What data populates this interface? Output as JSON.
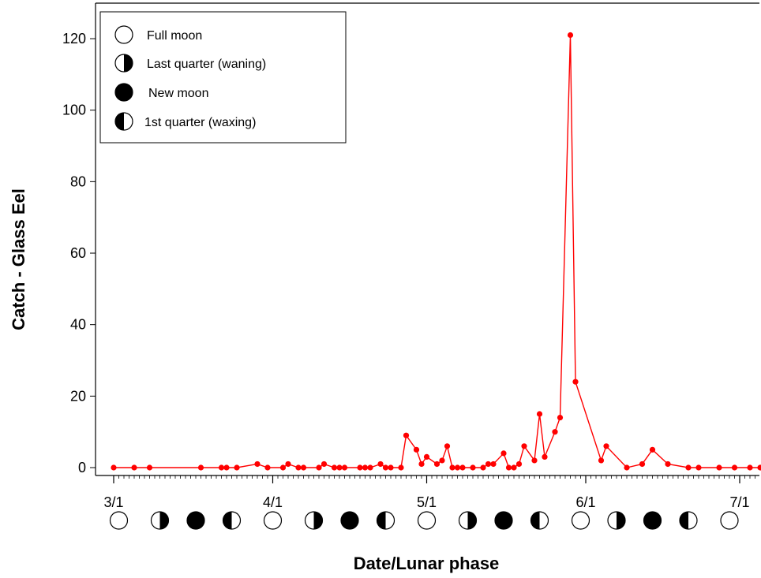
{
  "chart_data": {
    "type": "line",
    "title": "",
    "xlabel": "Date/Lunar phase",
    "ylabel": "Catch - Glass Eel",
    "ylim": [
      0,
      125
    ],
    "yticks": [
      0,
      20,
      40,
      60,
      80,
      100,
      120
    ],
    "x_tick_labels": [
      "3/1",
      "4/1",
      "5/1",
      "6/1",
      "7/1"
    ],
    "x_tick_dates": [
      "03-01",
      "04-01",
      "05-01",
      "06-01",
      "07-01"
    ],
    "xlim": [
      "03-01",
      "07-05"
    ],
    "grid": false,
    "line_color": "#ff0000",
    "series": [
      {
        "x": [
          "03-01",
          "03-05",
          "03-08",
          "03-18",
          "03-22",
          "03-23",
          "03-25",
          "03-29",
          "03-31",
          "04-03",
          "04-04",
          "04-06",
          "04-07",
          "04-10",
          "04-11",
          "04-13",
          "04-14",
          "04-15",
          "04-18",
          "04-19",
          "04-20",
          "04-22",
          "04-23",
          "04-24",
          "04-26",
          "04-27",
          "04-29",
          "04-30",
          "05-01",
          "05-03",
          "05-04",
          "05-05",
          "05-06",
          "05-07",
          "05-08",
          "05-10",
          "05-12",
          "05-13",
          "05-14",
          "05-16",
          "05-17",
          "05-18",
          "05-19",
          "05-20",
          "05-22",
          "05-23",
          "05-24",
          "05-26",
          "05-27",
          "05-29",
          "05-30",
          "06-04",
          "06-05",
          "06-09",
          "06-12",
          "06-14",
          "06-17",
          "06-21",
          "06-23",
          "06-27",
          "06-30",
          "07-03",
          "07-05"
        ],
        "y": [
          0,
          0,
          0,
          0,
          0,
          0,
          0,
          1,
          0,
          0,
          1,
          0,
          0,
          0,
          1,
          0,
          0,
          0,
          0,
          0,
          0,
          1,
          0,
          0,
          0,
          9,
          5,
          1,
          3,
          1,
          2,
          6,
          0,
          0,
          0,
          0,
          0,
          1,
          1,
          4,
          0,
          0,
          1,
          6,
          2,
          15,
          3,
          10,
          14,
          121,
          24,
          2,
          6,
          0,
          1,
          5,
          1,
          0,
          0,
          0,
          0,
          0,
          0
        ]
      }
    ],
    "lunar_phases": {
      "legend": [
        {
          "phase": "full",
          "label": "Full moon"
        },
        {
          "phase": "last-quarter",
          "label": "Last quarter (waning)"
        },
        {
          "phase": "new",
          "label": "New moon"
        },
        {
          "phase": "first-quarter",
          "label": "1st quarter (waxing)"
        }
      ],
      "legend_position": "top-left",
      "markers": [
        {
          "date": "03-02",
          "phase": "full"
        },
        {
          "date": "03-10",
          "phase": "last-quarter"
        },
        {
          "date": "03-17",
          "phase": "new"
        },
        {
          "date": "03-24",
          "phase": "first-quarter"
        },
        {
          "date": "04-01",
          "phase": "full"
        },
        {
          "date": "04-09",
          "phase": "last-quarter"
        },
        {
          "date": "04-16",
          "phase": "new"
        },
        {
          "date": "04-23",
          "phase": "first-quarter"
        },
        {
          "date": "05-01",
          "phase": "full"
        },
        {
          "date": "05-09",
          "phase": "last-quarter"
        },
        {
          "date": "05-16",
          "phase": "new"
        },
        {
          "date": "05-23",
          "phase": "first-quarter"
        },
        {
          "date": "05-31",
          "phase": "full"
        },
        {
          "date": "06-07",
          "phase": "last-quarter"
        },
        {
          "date": "06-14",
          "phase": "new"
        },
        {
          "date": "06-21",
          "phase": "first-quarter"
        },
        {
          "date": "06-29",
          "phase": "full"
        }
      ]
    }
  }
}
